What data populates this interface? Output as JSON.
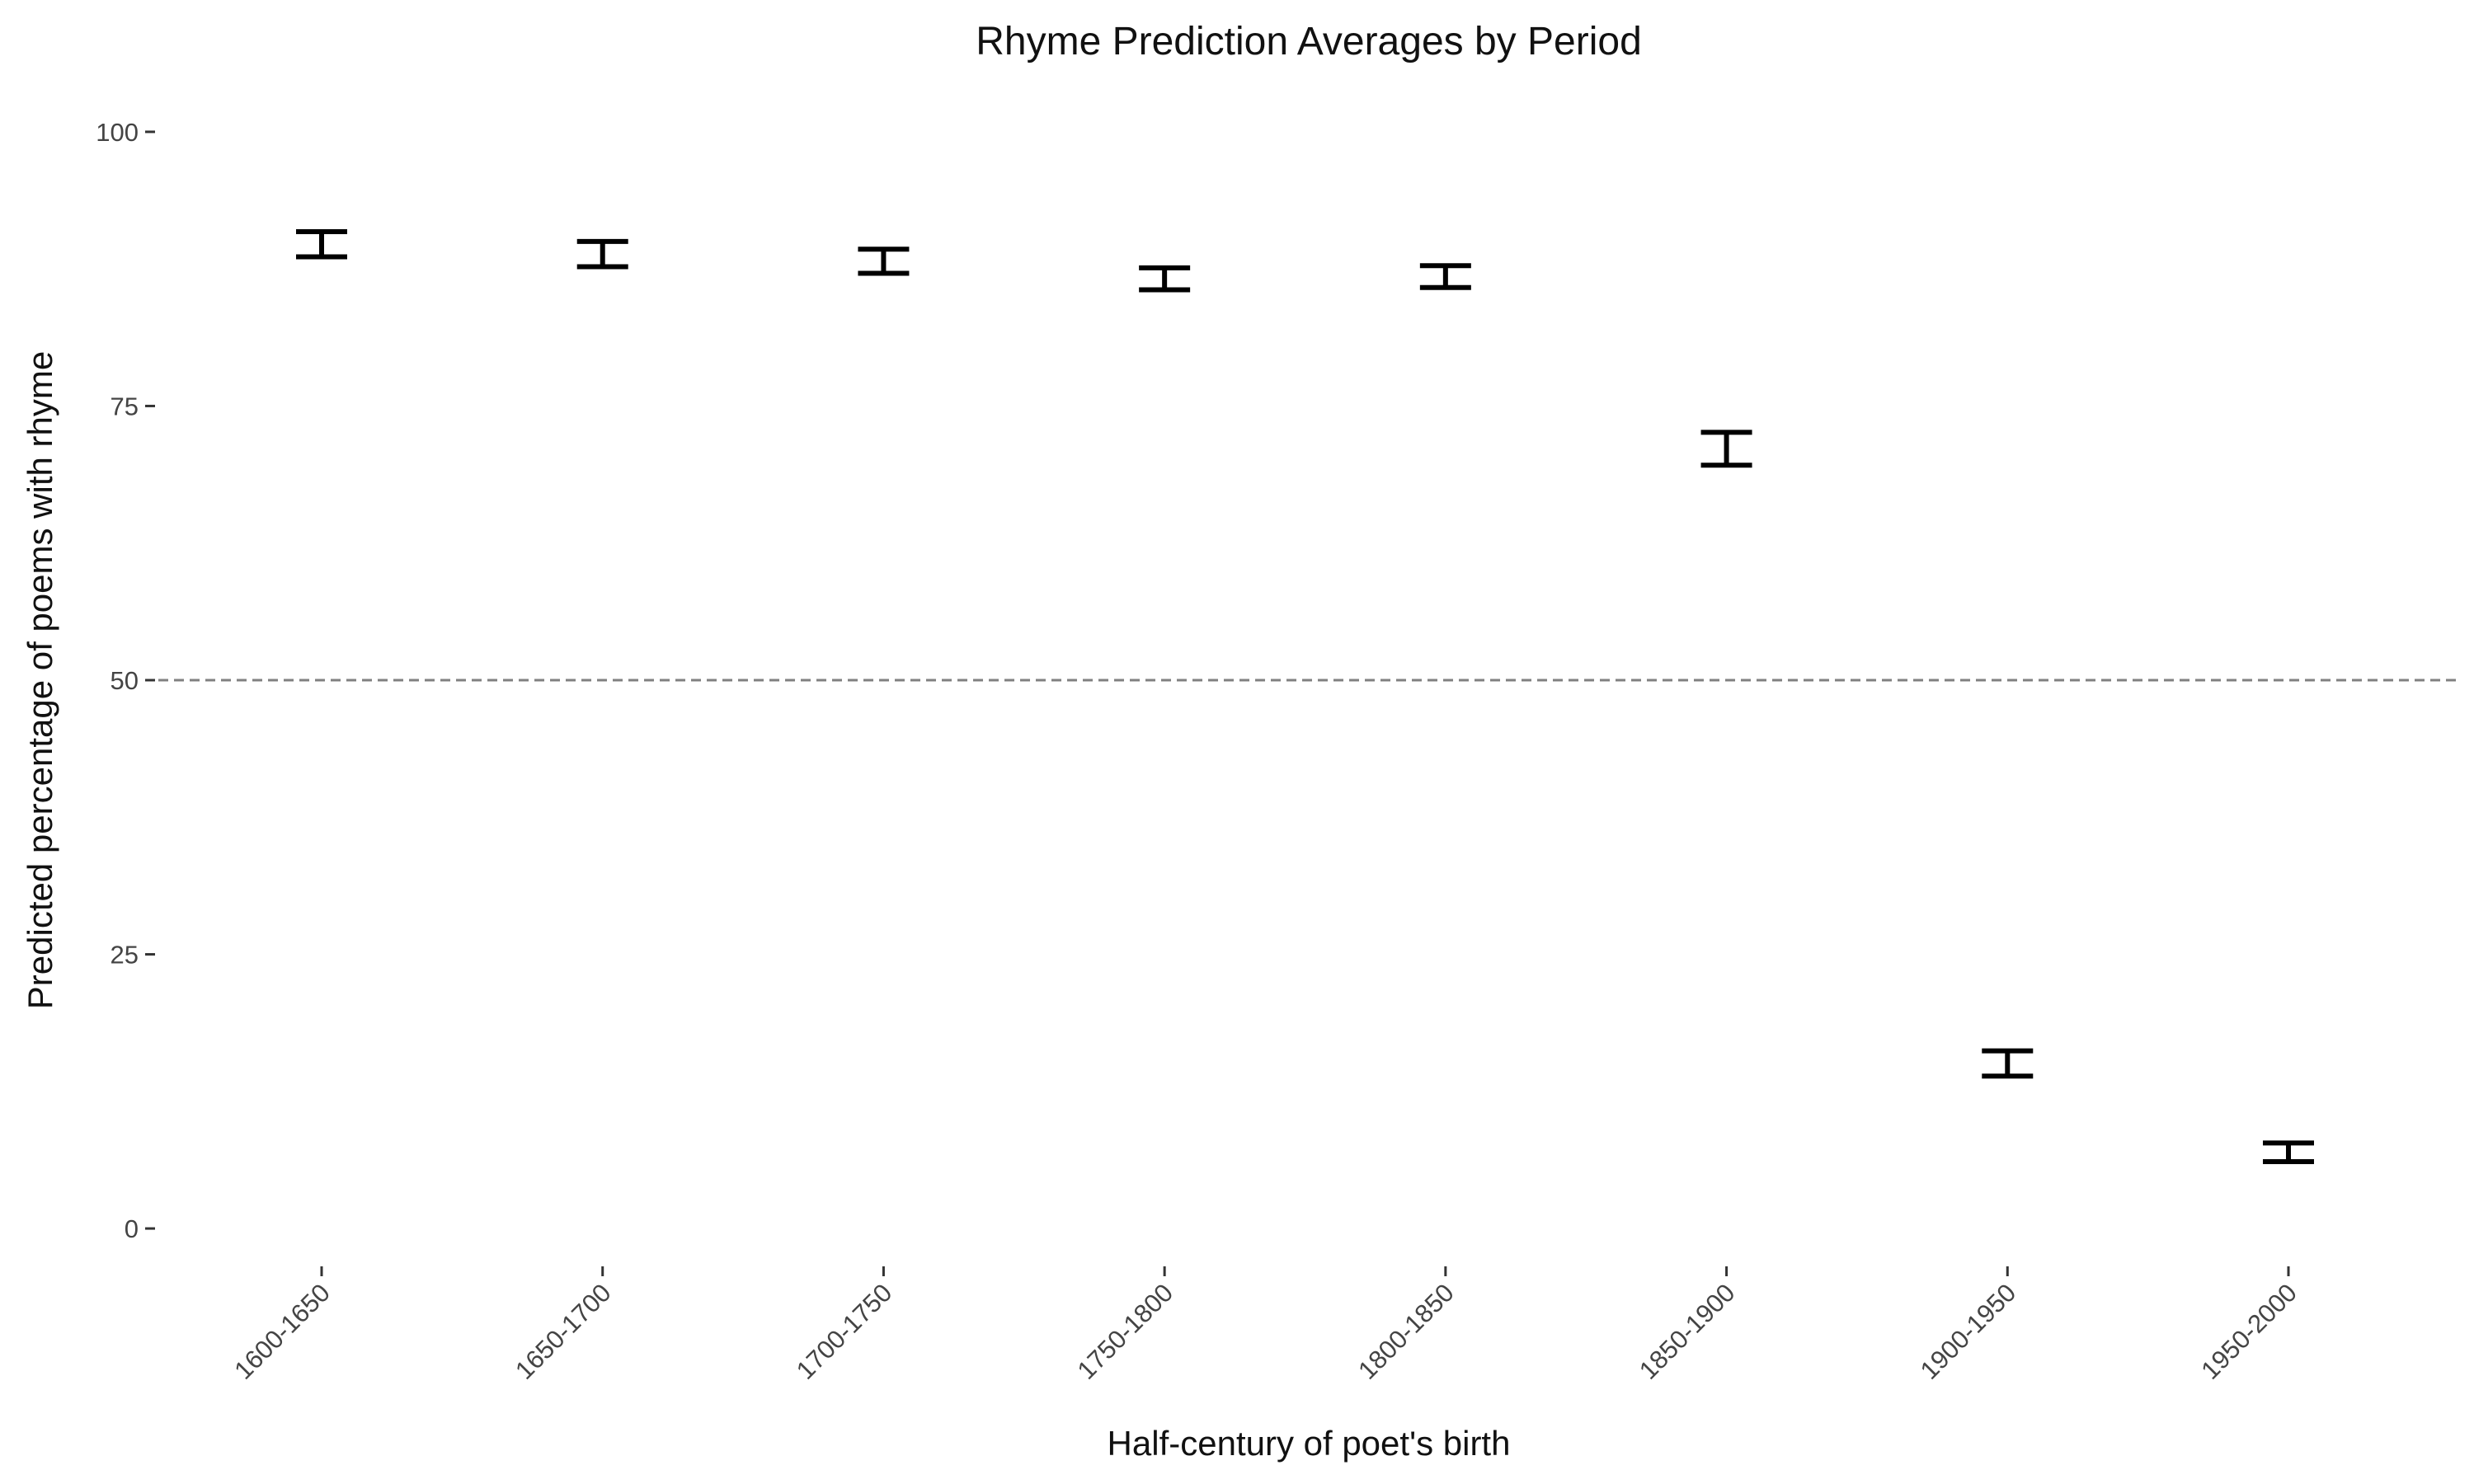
{
  "chart_data": {
    "type": "errorbar",
    "title": "Rhyme Prediction Averages by Period",
    "xlabel": "Half-century of poet's birth",
    "ylabel": "Predicted percentage of poems with rhyme",
    "categories": [
      "1600-1650",
      "1650-1700",
      "1700-1750",
      "1750-1800",
      "1800-1850",
      "1850-1900",
      "1900-1950",
      "1950-2000"
    ],
    "lower": [
      88.6,
      87.7,
      87.1,
      85.6,
      85.8,
      69.6,
      13.9,
      6.1
    ],
    "upper": [
      90.9,
      90.0,
      89.3,
      87.6,
      87.8,
      72.6,
      16.2,
      7.8
    ],
    "ylim": [
      -3,
      103
    ],
    "yticks": [
      0,
      25,
      50,
      75,
      100
    ],
    "reference_line": 50,
    "grid": false,
    "legend": "none"
  }
}
